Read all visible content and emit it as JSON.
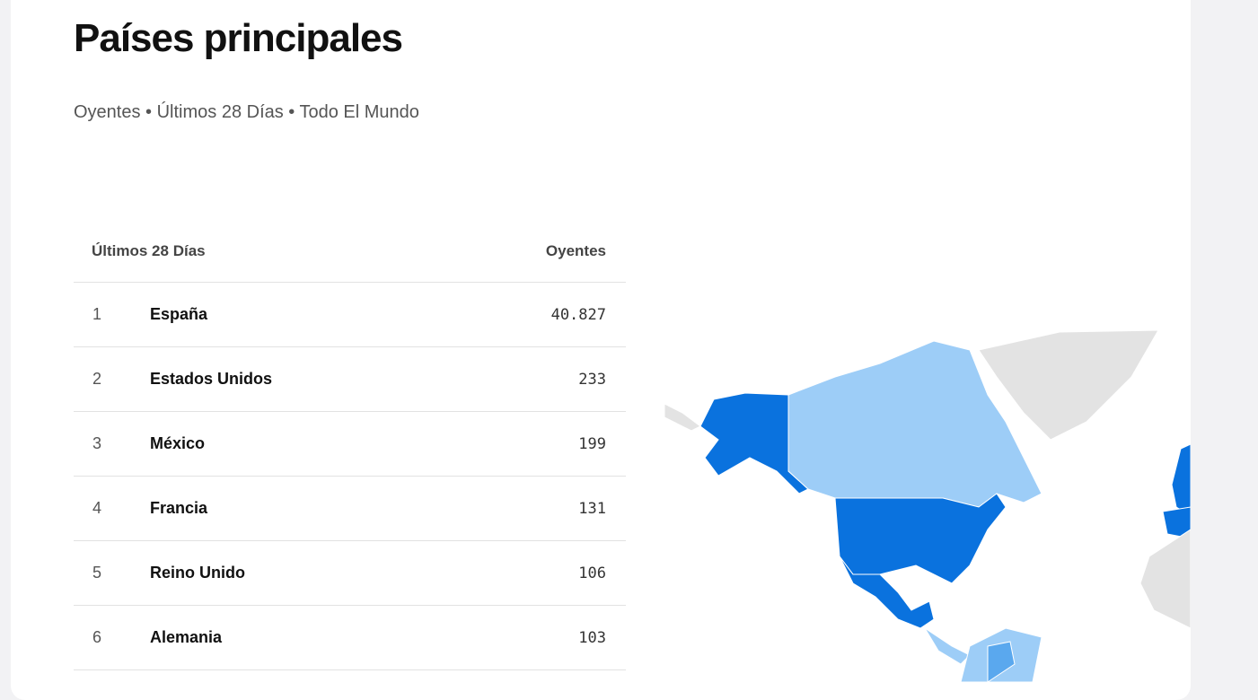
{
  "header": {
    "title": "Países principales",
    "subtitle": "Oyentes • Últimos 28 Días • Todo El Mundo"
  },
  "table": {
    "columns": [
      "Últimos 28 Días",
      "Oyentes"
    ],
    "rows": [
      [
        "1",
        "España",
        "40.827"
      ],
      [
        "2",
        "Estados Unidos",
        "233"
      ],
      [
        "3",
        "México",
        "199"
      ],
      [
        "4",
        "Francia",
        "131"
      ],
      [
        "5",
        "Reino Unido",
        "106"
      ],
      [
        "6",
        "Alemania",
        "103"
      ]
    ]
  }
}
